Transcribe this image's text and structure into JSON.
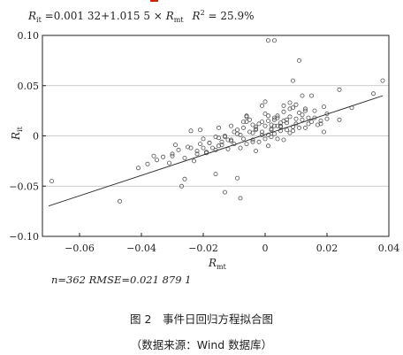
{
  "figure": {
    "caption": "图 2　事件日回归方程拟合图",
    "source": "（数据来源：Wind 数据库）"
  },
  "colors": {
    "axis": "#222222",
    "points": "#555555",
    "fit": "#333333",
    "grid": "#bbbbbb"
  },
  "chart_data": {
    "type": "scatter",
    "title": "R_it = 0.001 32 + 1.015 5 × R_mt   R² = 25.9%",
    "title_parts": {
      "lhs": "R",
      "lhs_sub": "it",
      "eq": " =0.001 32+1.015 5 × ",
      "mid": "R",
      "mid_sub": "mt",
      "r2": "R",
      "r2_sup": "2",
      "r2_val": " = 25.9%"
    },
    "xlabel": "R",
    "xlabel_sub": "mt",
    "ylabel": "R",
    "ylabel_sub": "it",
    "xlim": [
      -0.072,
      0.04
    ],
    "ylim": [
      -0.1,
      0.1
    ],
    "xticks": [
      -0.06,
      -0.04,
      -0.02,
      0,
      0.02,
      0.04
    ],
    "xtick_labels": [
      "−0.06",
      "−0.04",
      "−0.02",
      "0",
      "0.02",
      "0.04"
    ],
    "yticks": [
      -0.1,
      -0.05,
      0,
      0.05,
      0.1
    ],
    "ytick_labels": [
      "−0.10",
      "−0.05",
      "0",
      "0.05",
      "0.10"
    ],
    "grid": "horizontal",
    "fit_line": {
      "intercept": 0.00132,
      "slope": 1.0155
    },
    "annotation": "n=362   RMSE=0.021 879 1",
    "points": {
      "x": [
        -0.069,
        -0.047,
        -0.041,
        -0.038,
        -0.036,
        -0.033,
        -0.031,
        -0.03,
        -0.028,
        -0.026,
        -0.024,
        -0.022,
        -0.021,
        -0.02,
        -0.018,
        -0.016,
        -0.015,
        -0.013,
        -0.011,
        -0.009,
        -0.008,
        -0.006,
        -0.004,
        -0.003,
        -0.001,
        0.001,
        0.003,
        0.004,
        0.006,
        0.008,
        0.009,
        0.011,
        0.013,
        0.015,
        0.018,
        0.02,
        0.024,
        0.028,
        0.035,
        0.038,
        -0.035,
        -0.027,
        -0.019,
        -0.014,
        -0.009,
        -0.004,
        0.0,
        0.005,
        0.01,
        0.016,
        -0.03,
        -0.023,
        -0.012,
        -0.006,
        0.002,
        0.007,
        0.012,
        0.019,
        -0.017,
        -0.008,
        0.001,
        0.009,
        -0.02,
        -0.011,
        -0.003,
        0.004,
        0.014,
        -0.025,
        -0.015,
        -0.005,
        0.003,
        0.011,
        -0.013,
        -0.002,
        0.006,
        0.0,
        -0.007,
        0.008,
        -0.016,
        0.013,
        0.002,
        -0.01,
        0.005,
        -0.004,
        0.017,
        -0.022,
        0.001,
        0.01,
        -0.001,
        0.004,
        -0.029,
        -0.018,
        -0.007,
        0.007,
        0.015,
        -0.012,
        0.0,
        0.012,
        -0.009,
        0.003,
        0.02,
        -0.003,
        0.006,
        -0.014,
        0.009,
        -0.026,
        0.016,
        -0.006,
        0.002,
        0.008,
        -0.016,
        -0.001,
        0.011,
        0.003,
        -0.011,
        0.005,
        -0.008,
        0.014,
        -0.002,
        0.007,
        -0.019,
        0.001,
        0.01,
        -0.005,
        0.004,
        -0.013,
        0.006,
        -0.003,
        0.012,
        0.0,
        -0.021,
        -0.007,
        0.009,
        0.002,
        -0.01,
        0.005,
        -0.004,
        0.018,
        -0.015,
        0.003,
        0.008,
        -0.001,
        0.013,
        -0.006,
        0.001,
        0.024,
        0.019,
        -0.024
      ],
      "y": [
        -0.045,
        -0.065,
        -0.032,
        -0.028,
        -0.02,
        -0.021,
        -0.027,
        -0.018,
        -0.014,
        -0.043,
        -0.012,
        -0.015,
        -0.008,
        -0.012,
        -0.007,
        -0.038,
        -0.01,
        -0.056,
        -0.005,
        -0.042,
        -0.062,
        0.02,
        -0.004,
        -0.015,
        0.03,
        0.095,
        0.095,
        0.01,
        -0.004,
        0.003,
        0.055,
        0.075,
        0.008,
        0.04,
        0.012,
        0.022,
        0.016,
        0.028,
        0.042,
        0.055,
        -0.024,
        -0.05,
        -0.017,
        -0.009,
        0.006,
        -0.006,
        0.01,
        0.01,
        0.031,
        0.018,
        -0.02,
        -0.025,
        -0.013,
        -0.008,
        0.007,
        0.013,
        0.016,
        0.004,
        -0.012,
        0.001,
        0.015,
        0.009,
        -0.003,
        -0.004,
        0.009,
        0.02,
        0.018,
        -0.011,
        -0.002,
        0.004,
        0.01,
        0.023,
        0.0,
        0.012,
        0.015,
        0.034,
        -0.003,
        0.019,
        -0.014,
        0.025,
        0.006,
        -0.008,
        0.013,
        0.003,
        0.011,
        -0.018,
        0.02,
        0.012,
        0.004,
        0.018,
        -0.009,
        -0.007,
        0.008,
        0.016,
        0.014,
        -0.004,
        0.022,
        0.021,
        0.002,
        0.016,
        0.017,
        0.007,
        0.024,
        -0.006,
        0.028,
        -0.022,
        0.025,
        0.014,
        0.011,
        0.027,
        -0.001,
        0.014,
        0.008,
        0.002,
        0.01,
        0.005,
        -0.012,
        0.012,
        -0.006,
        0.006,
        -0.016,
        0.001,
        0.017,
        0.016,
        -0.003,
        -0.001,
        0.03,
        0.006,
        0.04,
        -0.003,
        0.006,
        0.014,
        0.005,
        -0.001,
        0.004,
        0.009,
        0.011,
        0.015,
        0.008,
        0.018,
        0.033,
        0.001,
        0.027,
        0.019,
        -0.01,
        0.046,
        0.029,
        0.005
      ]
    }
  }
}
